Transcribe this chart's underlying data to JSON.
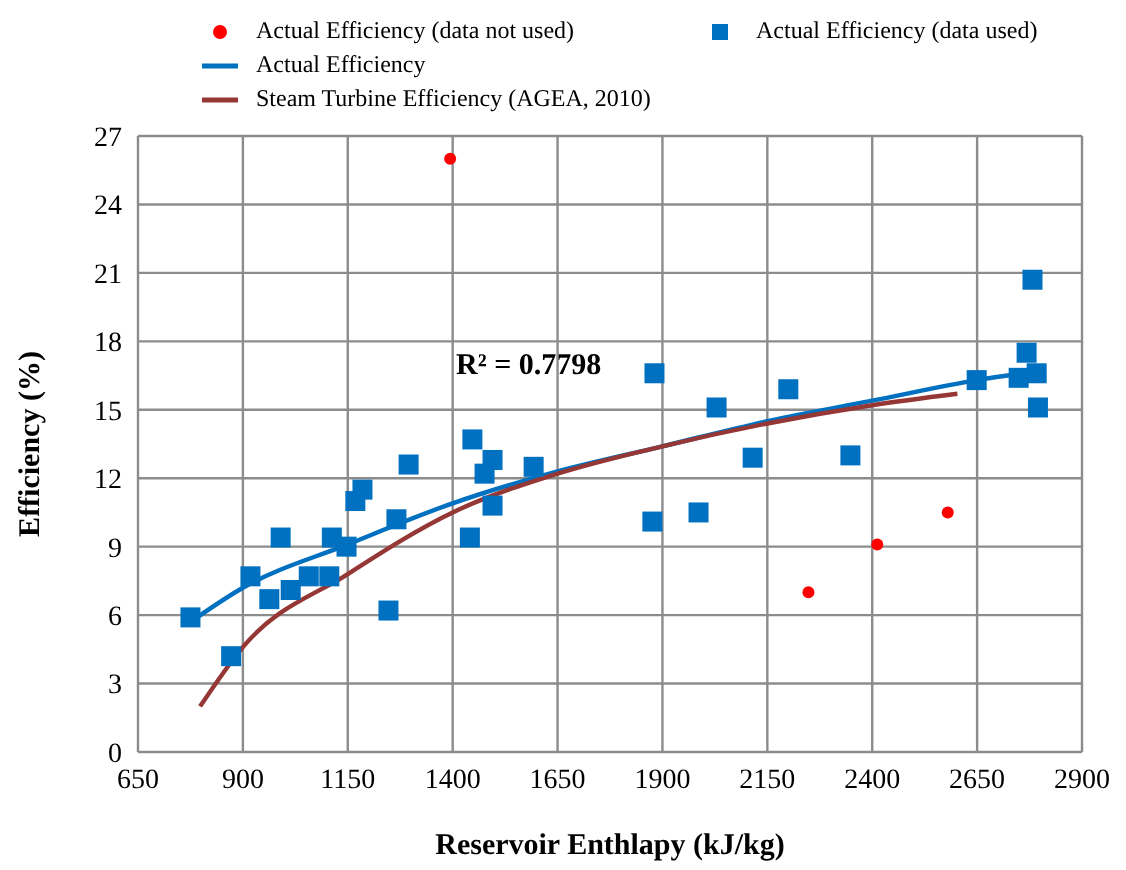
{
  "chart_data": {
    "type": "scatter",
    "xlabel": "Reservoir Enthlapy (kJ/kg)",
    "ylabel": "Efficiency (%)",
    "xlim": [
      650,
      2900
    ],
    "xticks": [
      650,
      900,
      1150,
      1400,
      1650,
      1900,
      2150,
      2400,
      2650,
      2900
    ],
    "ylim": [
      0,
      27
    ],
    "yticks": [
      0,
      3,
      6,
      9,
      12,
      15,
      18,
      21,
      24,
      27
    ],
    "grid": true,
    "legend": "top",
    "annotations": [
      "R² = 0.7798"
    ],
    "series": [
      {
        "name": "Actual Efficiency (data not used)",
        "marker": "circle",
        "color": "#ff0000",
        "x": [
          1394,
          2248,
          2412,
          2580
        ],
        "values": [
          26.0,
          7.0,
          9.1,
          10.5
        ]
      },
      {
        "name": "Actual Efficiency (data used)",
        "marker": "square",
        "color": "#0070c0",
        "x": [
          775,
          872,
          918,
          963,
          990,
          1014,
          1057,
          1106,
          1112,
          1147,
          1168,
          1185,
          1247,
          1266,
          1295,
          1441,
          1447,
          1476,
          1495,
          1495,
          1593,
          1881,
          1876,
          1986,
          2029,
          2115,
          2200,
          2348,
          2649,
          2749,
          2768,
          2782,
          2792,
          2795
        ],
        "values": [
          5.9,
          4.2,
          7.7,
          6.7,
          9.4,
          7.1,
          7.7,
          7.7,
          9.4,
          9.0,
          11.0,
          11.5,
          6.2,
          10.2,
          12.6,
          9.4,
          13.7,
          12.2,
          12.8,
          10.8,
          12.5,
          16.6,
          10.1,
          10.5,
          15.1,
          12.9,
          15.9,
          13.0,
          16.3,
          16.4,
          17.5,
          20.7,
          16.6,
          15.1
        ]
      },
      {
        "name": "Actual Efficiency",
        "type": "line",
        "marker": "none",
        "color": "#0070c0",
        "x": [
          775,
          900,
          1150,
          1400,
          1650,
          1900,
          2150,
          2400,
          2650,
          2800
        ],
        "values": [
          5.7,
          7.2,
          9.1,
          10.9,
          12.3,
          13.4,
          14.5,
          15.4,
          16.3,
          16.7
        ]
      },
      {
        "name": "Steam Turbine Efficiency (AGEA, 2010)",
        "type": "line",
        "marker": "none",
        "color": "#953735",
        "x": [
          798,
          900,
          1150,
          1400,
          1650,
          1900,
          2150,
          2400,
          2603
        ],
        "values": [
          2.0,
          4.6,
          7.8,
          10.5,
          12.2,
          13.4,
          14.4,
          15.2,
          15.7
        ]
      }
    ]
  }
}
